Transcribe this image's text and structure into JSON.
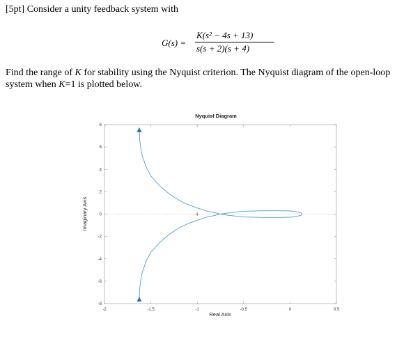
{
  "question": {
    "points_label": "[5pt]",
    "intro": "Consider a unity feedback system with",
    "formula": {
      "lhs": "G(s) =",
      "numerator": "K(s² − 4s + 13)",
      "denominator": "s(s + 2)(s + 4)"
    },
    "line1_pre": "Find the range of ",
    "line1_k": "K",
    "line1_post": " for stability using the Nyquist criterion. The Nyquist diagram of the open-loop",
    "line2_pre": "system when ",
    "line2_k": "K",
    "line2_post": "=1 is plotted below."
  },
  "chart_data": {
    "type": "line",
    "title": "Nyquist Diagram",
    "xlabel": "Real Axis",
    "ylabel": "Imaginary Axis",
    "xlim": [
      -2,
      0.5
    ],
    "ylim": [
      -8,
      8
    ],
    "xticks": [
      -2,
      -1.5,
      -1,
      -0.5,
      0,
      0.5
    ],
    "xtick_labels": [
      "-2",
      "-1.5",
      "-1",
      "-0.5",
      "0",
      "0.5"
    ],
    "yticks": [
      -8,
      -6,
      -4,
      -2,
      0,
      2,
      4,
      6,
      8
    ],
    "ytick_labels": [
      "-8",
      "-6",
      "-4",
      "-2",
      "0",
      "2",
      "4",
      "6",
      "8"
    ],
    "grid": false,
    "critical_point": {
      "x": -1,
      "y": 0,
      "marker": "+"
    },
    "curve_color": "#4a9fd4",
    "arrow_color": "#1f6fb5",
    "critical_color": "#e0403a",
    "series": [
      {
        "values": [
          [
            -1.625,
            7.7
          ],
          [
            -1.62,
            6.6
          ],
          [
            -1.6,
            5.4
          ],
          [
            -1.55,
            4.2
          ],
          [
            -1.5,
            3.4
          ],
          [
            -1.4,
            2.5
          ],
          [
            -1.3,
            1.8
          ],
          [
            -1.2,
            1.25
          ],
          [
            -1.1,
            0.85
          ],
          [
            -1.0,
            0.55
          ],
          [
            -0.9,
            0.28
          ],
          [
            -0.8,
            0.1
          ],
          [
            -0.75,
            0.0
          ],
          [
            -0.65,
            0.12
          ],
          [
            -0.5,
            0.25
          ],
          [
            -0.3,
            0.3
          ],
          [
            -0.1,
            0.3
          ],
          [
            0.0,
            0.28
          ],
          [
            0.08,
            0.2
          ],
          [
            0.12,
            0.1
          ],
          [
            0.125,
            0.0
          ],
          [
            0.12,
            -0.1
          ],
          [
            0.08,
            -0.2
          ],
          [
            0.0,
            -0.28
          ],
          [
            -0.1,
            -0.3
          ],
          [
            -0.3,
            -0.3
          ],
          [
            -0.5,
            -0.25
          ],
          [
            -0.65,
            -0.12
          ],
          [
            -0.75,
            0.0
          ],
          [
            -0.8,
            -0.1
          ],
          [
            -0.9,
            -0.28
          ],
          [
            -1.0,
            -0.55
          ],
          [
            -1.1,
            -0.85
          ],
          [
            -1.2,
            -1.25
          ],
          [
            -1.3,
            -1.8
          ],
          [
            -1.4,
            -2.5
          ],
          [
            -1.5,
            -3.4
          ],
          [
            -1.55,
            -4.2
          ],
          [
            -1.6,
            -5.4
          ],
          [
            -1.62,
            -6.6
          ],
          [
            -1.625,
            -7.7
          ]
        ]
      }
    ],
    "arrows": [
      {
        "x": -1.625,
        "y": 7.45,
        "direction": "up"
      },
      {
        "x": -1.625,
        "y": -7.7,
        "direction": "up"
      }
    ]
  }
}
